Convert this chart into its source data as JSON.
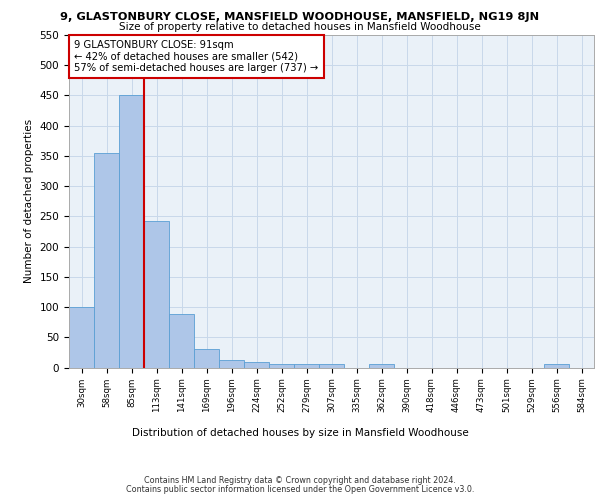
{
  "title1": "9, GLASTONBURY CLOSE, MANSFIELD WOODHOUSE, MANSFIELD, NG19 8JN",
  "title2": "Size of property relative to detached houses in Mansfield Woodhouse",
  "xlabel": "Distribution of detached houses by size in Mansfield Woodhouse",
  "ylabel": "Number of detached properties",
  "footer1": "Contains HM Land Registry data © Crown copyright and database right 2024.",
  "footer2": "Contains public sector information licensed under the Open Government Licence v3.0.",
  "bar_labels": [
    "30sqm",
    "58sqm",
    "85sqm",
    "113sqm",
    "141sqm",
    "169sqm",
    "196sqm",
    "224sqm",
    "252sqm",
    "279sqm",
    "307sqm",
    "335sqm",
    "362sqm",
    "390sqm",
    "418sqm",
    "446sqm",
    "473sqm",
    "501sqm",
    "529sqm",
    "556sqm",
    "584sqm"
  ],
  "bar_values": [
    100,
    355,
    450,
    243,
    88,
    30,
    13,
    9,
    5,
    5,
    5,
    0,
    5,
    0,
    0,
    0,
    0,
    0,
    0,
    5,
    0
  ],
  "bar_color": "#aec6e8",
  "bar_edge_color": "#5a9fd4",
  "grid_color": "#c8d8ea",
  "bg_color": "#eaf1f8",
  "annotation_box_color": "#ffffff",
  "annotation_box_edge": "#cc0000",
  "vline_color": "#cc0000",
  "vline_x_index": 2,
  "annotation_line1": "9 GLASTONBURY CLOSE: 91sqm",
  "annotation_line2": "← 42% of detached houses are smaller (542)",
  "annotation_line3": "57% of semi-detached houses are larger (737) →",
  "ylim": [
    0,
    550
  ],
  "yticks": [
    0,
    50,
    100,
    150,
    200,
    250,
    300,
    350,
    400,
    450,
    500,
    550
  ]
}
